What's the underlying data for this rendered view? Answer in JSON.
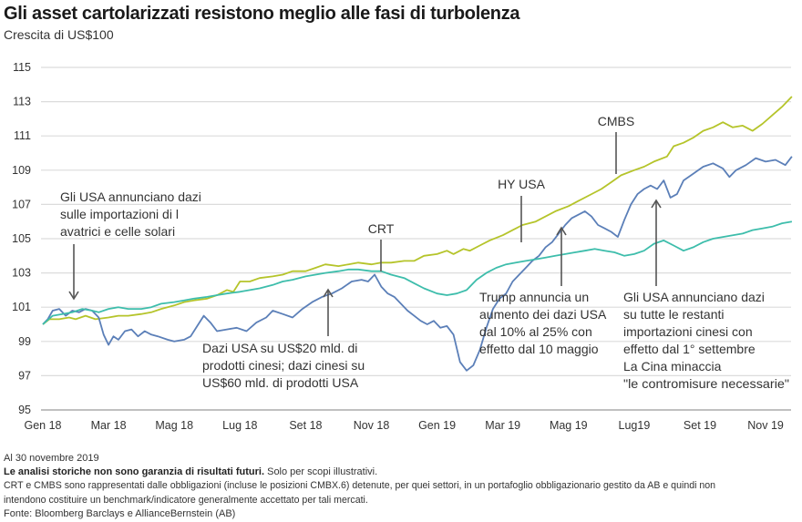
{
  "header": {
    "title": "Gli asset cartolarizzati resistono meglio alle fasi di turbolenza",
    "subtitle": "Crescita di US$100"
  },
  "chart_data": {
    "type": "line",
    "title": "Gli asset cartolarizzati resistono meglio alle fasi di turbolenza",
    "subtitle": "Crescita di US$100",
    "xlabel": "",
    "ylabel": "",
    "x_unit": "months since Jan 2018",
    "xlim": [
      0,
      22.8
    ],
    "ylim": [
      95,
      115
    ],
    "yticks": [
      95,
      97,
      99,
      101,
      103,
      105,
      107,
      109,
      111,
      113,
      115
    ],
    "xticks": [
      {
        "pos": 0,
        "label": "Gen 18"
      },
      {
        "pos": 2,
        "label": "Mar 18"
      },
      {
        "pos": 4,
        "label": "Mag 18"
      },
      {
        "pos": 6,
        "label": "Lug 18"
      },
      {
        "pos": 8,
        "label": "Set 18"
      },
      {
        "pos": 10,
        "label": "Nov 18"
      },
      {
        "pos": 12,
        "label": "Gen 19"
      },
      {
        "pos": 14,
        "label": "Mar 19"
      },
      {
        "pos": 16,
        "label": "Mag 19"
      },
      {
        "pos": 18,
        "label": "Lug19"
      },
      {
        "pos": 20,
        "label": "Set 19"
      },
      {
        "pos": 22,
        "label": "Nov 19"
      }
    ],
    "grid": true,
    "series": [
      {
        "name": "CMBS",
        "color": "#b5c42a",
        "points": [
          [
            0,
            100.0
          ],
          [
            0.2,
            100.3
          ],
          [
            0.5,
            100.3
          ],
          [
            0.8,
            100.4
          ],
          [
            1.0,
            100.3
          ],
          [
            1.3,
            100.5
          ],
          [
            1.6,
            100.3
          ],
          [
            2.0,
            100.4
          ],
          [
            2.3,
            100.5
          ],
          [
            2.6,
            100.5
          ],
          [
            3.0,
            100.6
          ],
          [
            3.3,
            100.7
          ],
          [
            3.6,
            100.9
          ],
          [
            4.0,
            101.1
          ],
          [
            4.3,
            101.3
          ],
          [
            4.6,
            101.4
          ],
          [
            5.0,
            101.5
          ],
          [
            5.3,
            101.7
          ],
          [
            5.6,
            102.0
          ],
          [
            5.8,
            101.9
          ],
          [
            6.0,
            102.5
          ],
          [
            6.3,
            102.5
          ],
          [
            6.6,
            102.7
          ],
          [
            7.0,
            102.8
          ],
          [
            7.3,
            102.9
          ],
          [
            7.6,
            103.1
          ],
          [
            8.0,
            103.1
          ],
          [
            8.3,
            103.3
          ],
          [
            8.6,
            103.5
          ],
          [
            9.0,
            103.4
          ],
          [
            9.3,
            103.5
          ],
          [
            9.6,
            103.6
          ],
          [
            10.0,
            103.5
          ],
          [
            10.3,
            103.6
          ],
          [
            10.6,
            103.6
          ],
          [
            11.0,
            103.7
          ],
          [
            11.3,
            103.7
          ],
          [
            11.6,
            104.0
          ],
          [
            12.0,
            104.1
          ],
          [
            12.3,
            104.3
          ],
          [
            12.5,
            104.1
          ],
          [
            12.8,
            104.4
          ],
          [
            13.0,
            104.3
          ],
          [
            13.3,
            104.6
          ],
          [
            13.6,
            104.9
          ],
          [
            14.0,
            105.2
          ],
          [
            14.3,
            105.5
          ],
          [
            14.6,
            105.8
          ],
          [
            15.0,
            106.0
          ],
          [
            15.3,
            106.3
          ],
          [
            15.6,
            106.6
          ],
          [
            16.0,
            106.9
          ],
          [
            16.3,
            107.2
          ],
          [
            16.6,
            107.5
          ],
          [
            17.0,
            107.9
          ],
          [
            17.3,
            108.3
          ],
          [
            17.6,
            108.7
          ],
          [
            18.0,
            109.0
          ],
          [
            18.3,
            109.2
          ],
          [
            18.6,
            109.5
          ],
          [
            19.0,
            109.8
          ],
          [
            19.2,
            110.4
          ],
          [
            19.5,
            110.6
          ],
          [
            19.8,
            110.9
          ],
          [
            20.1,
            111.3
          ],
          [
            20.4,
            111.5
          ],
          [
            20.7,
            111.8
          ],
          [
            21.0,
            111.5
          ],
          [
            21.3,
            111.6
          ],
          [
            21.6,
            111.3
          ],
          [
            21.9,
            111.7
          ],
          [
            22.2,
            112.2
          ],
          [
            22.5,
            112.7
          ],
          [
            22.8,
            113.3
          ]
        ]
      },
      {
        "name": "HY USA",
        "color": "#5b7fb8",
        "points": [
          [
            0,
            100.0
          ],
          [
            0.15,
            100.3
          ],
          [
            0.3,
            100.8
          ],
          [
            0.5,
            100.9
          ],
          [
            0.7,
            100.5
          ],
          [
            0.9,
            100.8
          ],
          [
            1.1,
            100.7
          ],
          [
            1.3,
            100.9
          ],
          [
            1.5,
            100.8
          ],
          [
            1.7,
            100.4
          ],
          [
            1.85,
            99.4
          ],
          [
            2.0,
            98.8
          ],
          [
            2.15,
            99.3
          ],
          [
            2.3,
            99.1
          ],
          [
            2.5,
            99.6
          ],
          [
            2.7,
            99.7
          ],
          [
            2.9,
            99.3
          ],
          [
            3.1,
            99.6
          ],
          [
            3.3,
            99.4
          ],
          [
            3.5,
            99.3
          ],
          [
            3.8,
            99.1
          ],
          [
            4.0,
            99.0
          ],
          [
            4.3,
            99.1
          ],
          [
            4.5,
            99.3
          ],
          [
            4.7,
            99.9
          ],
          [
            4.9,
            100.5
          ],
          [
            5.1,
            100.1
          ],
          [
            5.3,
            99.6
          ],
          [
            5.6,
            99.7
          ],
          [
            5.9,
            99.8
          ],
          [
            6.2,
            99.6
          ],
          [
            6.5,
            100.1
          ],
          [
            6.8,
            100.4
          ],
          [
            7.0,
            100.8
          ],
          [
            7.3,
            100.6
          ],
          [
            7.6,
            100.4
          ],
          [
            7.9,
            100.9
          ],
          [
            8.2,
            101.3
          ],
          [
            8.5,
            101.6
          ],
          [
            8.8,
            101.8
          ],
          [
            9.1,
            102.1
          ],
          [
            9.4,
            102.5
          ],
          [
            9.7,
            102.6
          ],
          [
            9.9,
            102.5
          ],
          [
            10.1,
            102.9
          ],
          [
            10.3,
            102.2
          ],
          [
            10.5,
            101.8
          ],
          [
            10.7,
            101.6
          ],
          [
            10.9,
            101.2
          ],
          [
            11.1,
            100.8
          ],
          [
            11.3,
            100.5
          ],
          [
            11.5,
            100.2
          ],
          [
            11.7,
            100.0
          ],
          [
            11.9,
            100.2
          ],
          [
            12.1,
            99.8
          ],
          [
            12.3,
            99.9
          ],
          [
            12.5,
            99.4
          ],
          [
            12.7,
            97.8
          ],
          [
            12.9,
            97.3
          ],
          [
            13.1,
            97.6
          ],
          [
            13.3,
            98.5
          ],
          [
            13.5,
            99.8
          ],
          [
            13.7,
            100.9
          ],
          [
            13.9,
            101.5
          ],
          [
            14.1,
            101.8
          ],
          [
            14.3,
            102.5
          ],
          [
            14.5,
            102.9
          ],
          [
            14.7,
            103.3
          ],
          [
            14.9,
            103.7
          ],
          [
            15.1,
            104.0
          ],
          [
            15.3,
            104.5
          ],
          [
            15.5,
            104.8
          ],
          [
            15.7,
            105.3
          ],
          [
            15.9,
            105.8
          ],
          [
            16.1,
            106.2
          ],
          [
            16.3,
            106.4
          ],
          [
            16.5,
            106.6
          ],
          [
            16.7,
            106.3
          ],
          [
            16.9,
            105.8
          ],
          [
            17.1,
            105.6
          ],
          [
            17.3,
            105.4
          ],
          [
            17.5,
            105.1
          ],
          [
            17.7,
            106.1
          ],
          [
            17.9,
            107.0
          ],
          [
            18.1,
            107.6
          ],
          [
            18.3,
            107.9
          ],
          [
            18.5,
            108.1
          ],
          [
            18.7,
            107.9
          ],
          [
            18.9,
            108.4
          ],
          [
            19.1,
            107.4
          ],
          [
            19.3,
            107.6
          ],
          [
            19.5,
            108.4
          ],
          [
            19.8,
            108.8
          ],
          [
            20.1,
            109.2
          ],
          [
            20.4,
            109.4
          ],
          [
            20.7,
            109.1
          ],
          [
            20.9,
            108.6
          ],
          [
            21.1,
            109.0
          ],
          [
            21.4,
            109.3
          ],
          [
            21.7,
            109.7
          ],
          [
            22.0,
            109.5
          ],
          [
            22.3,
            109.6
          ],
          [
            22.6,
            109.3
          ],
          [
            22.8,
            109.8
          ]
        ]
      },
      {
        "name": "CRT",
        "color": "#3dbdab",
        "points": [
          [
            0,
            100.0
          ],
          [
            0.3,
            100.5
          ],
          [
            0.6,
            100.6
          ],
          [
            0.9,
            100.7
          ],
          [
            1.2,
            100.9
          ],
          [
            1.5,
            100.8
          ],
          [
            1.7,
            100.7
          ],
          [
            2.0,
            100.9
          ],
          [
            2.3,
            101.0
          ],
          [
            2.6,
            100.9
          ],
          [
            3.0,
            100.9
          ],
          [
            3.3,
            101.0
          ],
          [
            3.6,
            101.2
          ],
          [
            4.0,
            101.3
          ],
          [
            4.3,
            101.4
          ],
          [
            4.6,
            101.5
          ],
          [
            5.0,
            101.6
          ],
          [
            5.3,
            101.7
          ],
          [
            5.6,
            101.8
          ],
          [
            6.0,
            101.9
          ],
          [
            6.3,
            102.0
          ],
          [
            6.6,
            102.1
          ],
          [
            7.0,
            102.3
          ],
          [
            7.3,
            102.5
          ],
          [
            7.6,
            102.6
          ],
          [
            8.0,
            102.8
          ],
          [
            8.3,
            102.9
          ],
          [
            8.6,
            103.0
          ],
          [
            9.0,
            103.1
          ],
          [
            9.3,
            103.2
          ],
          [
            9.6,
            103.2
          ],
          [
            10.0,
            103.1
          ],
          [
            10.3,
            103.1
          ],
          [
            10.6,
            102.9
          ],
          [
            11.0,
            102.7
          ],
          [
            11.3,
            102.4
          ],
          [
            11.6,
            102.1
          ],
          [
            12.0,
            101.8
          ],
          [
            12.3,
            101.7
          ],
          [
            12.6,
            101.8
          ],
          [
            12.9,
            102.0
          ],
          [
            13.2,
            102.6
          ],
          [
            13.5,
            103.0
          ],
          [
            13.8,
            103.3
          ],
          [
            14.1,
            103.5
          ],
          [
            14.4,
            103.6
          ],
          [
            14.7,
            103.7
          ],
          [
            15.0,
            103.8
          ],
          [
            15.3,
            103.9
          ],
          [
            15.6,
            104.0
          ],
          [
            15.9,
            104.1
          ],
          [
            16.2,
            104.2
          ],
          [
            16.5,
            104.3
          ],
          [
            16.8,
            104.4
          ],
          [
            17.1,
            104.3
          ],
          [
            17.4,
            104.2
          ],
          [
            17.7,
            104.0
          ],
          [
            18.0,
            104.1
          ],
          [
            18.3,
            104.3
          ],
          [
            18.6,
            104.7
          ],
          [
            18.9,
            104.9
          ],
          [
            19.2,
            104.6
          ],
          [
            19.5,
            104.3
          ],
          [
            19.8,
            104.5
          ],
          [
            20.1,
            104.8
          ],
          [
            20.4,
            105.0
          ],
          [
            20.7,
            105.1
          ],
          [
            21.0,
            105.2
          ],
          [
            21.3,
            105.3
          ],
          [
            21.6,
            105.5
          ],
          [
            21.9,
            105.6
          ],
          [
            22.2,
            105.7
          ],
          [
            22.5,
            105.9
          ],
          [
            22.8,
            106.0
          ]
        ]
      }
    ],
    "series_labels": [
      {
        "text": "CRT"
      },
      {
        "text": "HY USA"
      },
      {
        "text": "CMBS"
      }
    ],
    "annotations": [
      {
        "lines": [
          "Gli USA annunciano dazi",
          "sulle importazioni di l",
          "avatrici e celle solari"
        ],
        "arrow": "down"
      },
      {
        "lines": [
          "Dazi USA su US$20 mld. di",
          "prodotti cinesi; dazi cinesi su",
          "US$60 mld. di prodotti USA"
        ],
        "arrow": "up"
      },
      {
        "lines": [
          "Trump annuncia un",
          "aumento dei dazi USA",
          "dal 10% al 25% con",
          "effetto dal 10 maggio"
        ],
        "arrow": "up"
      },
      {
        "lines": [
          "Gli USA annunciano dazi",
          "su tutte le restanti",
          "importazioni cinesi con",
          "effetto dal 1° settembre",
          "La Cina minaccia",
          "\"le contromisure necessarie\""
        ],
        "arrow": "up"
      }
    ]
  },
  "footer": {
    "date": "Al 30 novembre 2019",
    "disclaimer_bold": "Le analisi storiche non sono garanzia di risultati futuri.",
    "disclaimer_rest": " Solo per scopi illustrativi.",
    "note_line1": "CRT e CMBS sono rappresentati dalle obbligazioni (incluse le posizioni CMBX.6) detenute, per quei settori, in un portafoglio obbligazionario gestito da AB e quindi non",
    "note_line2": "intendono costituire un benchmark/indicatore generalmente accettato per tali mercati.",
    "source": "Fonte: Bloomberg Barclays e AllianceBernstein (AB)"
  }
}
